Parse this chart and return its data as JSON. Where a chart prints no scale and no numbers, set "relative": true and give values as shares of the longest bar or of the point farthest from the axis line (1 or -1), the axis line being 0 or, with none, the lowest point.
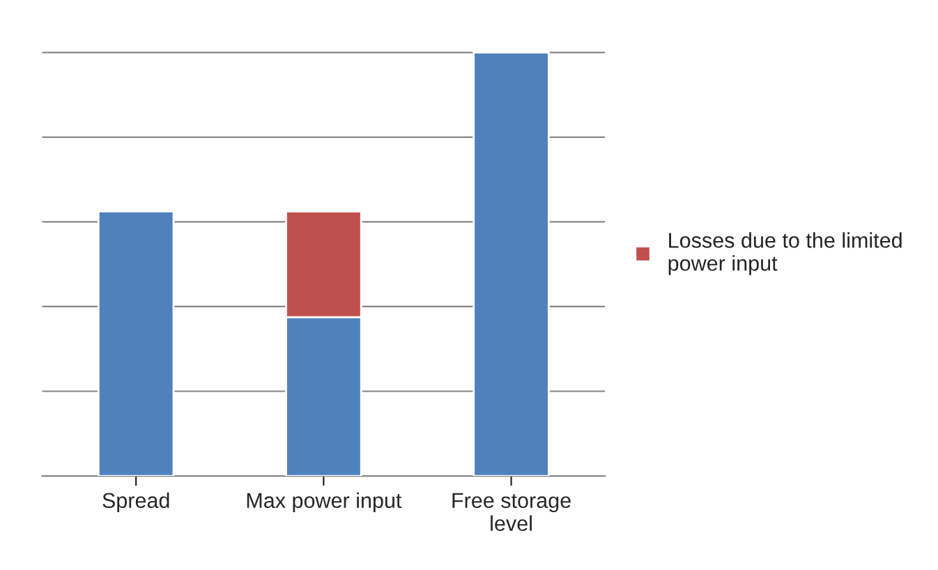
{
  "chart_data": {
    "type": "bar",
    "relative": true,
    "stacked": true,
    "categories": [
      "Spread",
      "Max power input",
      "Free storage level"
    ],
    "series": [
      {
        "color": "#4f81bd",
        "values": [
          0.625,
          0.375,
          1
        ]
      },
      {
        "name": "Losses due to the limited power input",
        "color": "#c0504d",
        "values": [
          null,
          0.25,
          null
        ]
      }
    ],
    "grid": "y",
    "legend": "right"
  }
}
